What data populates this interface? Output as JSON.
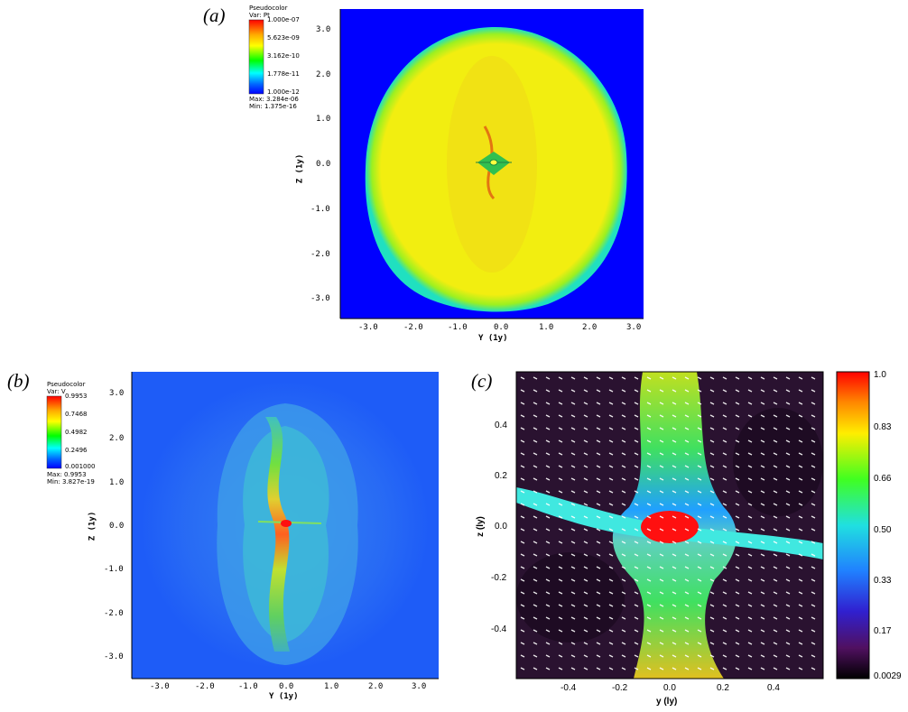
{
  "panels": {
    "a": {
      "label": "(a)",
      "legend_title": "Pseudocolor",
      "legend_var": "Var: Pt",
      "colorbar_labels": [
        "1.000e-07",
        "5.623e-09",
        "3.162e-10",
        "1.778e-11",
        "1.000e-12"
      ],
      "max_text": "Max: 3.284e-06",
      "min_text": "Min: 1.375e-16",
      "x_ticks": [
        "-3.0",
        "-2.0",
        "-1.0",
        "0.0",
        "1.0",
        "2.0",
        "3.0"
      ],
      "y_ticks": [
        "3.0",
        "2.0",
        "1.0",
        "0.0",
        "-1.0",
        "-2.0",
        "-3.0"
      ],
      "xlabel": "Y (1y)",
      "ylabel": "Z (1y)"
    },
    "b": {
      "label": "(b)",
      "legend_title": "Pseudocolor",
      "legend_var": "Var: V",
      "colorbar_labels": [
        "0.9953",
        "0.7468",
        "0.4982",
        "0.2496",
        "0.001000"
      ],
      "max_text": "Max: 0.9953",
      "min_text": "Min: 3.827e-19",
      "x_ticks": [
        "-3.0",
        "-2.0",
        "-1.0",
        "0.0",
        "1.0",
        "2.0",
        "3.0"
      ],
      "y_ticks": [
        "3.0",
        "2.0",
        "1.0",
        "0.0",
        "-1.0",
        "-2.0",
        "-3.0"
      ],
      "xlabel": "Y (1y)",
      "ylabel": "Z (1y)"
    },
    "c": {
      "label": "(c)",
      "x_ticks": [
        "-0.4",
        "-0.2",
        "0.0",
        "0.2",
        "0.4"
      ],
      "y_ticks": [
        "0.4",
        "0.2",
        "0.0",
        "-0.2",
        "-0.4"
      ],
      "xlabel": "y (ly)",
      "ylabel": "z (ly)",
      "colorbar_labels": [
        "1.0",
        "0.83",
        "0.66",
        "0.50",
        "0.33",
        "0.17",
        "0.0029"
      ]
    }
  },
  "colors": {
    "rainbow": [
      "#ff0000",
      "#ffaa00",
      "#ffff00",
      "#00ff00",
      "#00ffff",
      "#0055ff",
      "#0000ff"
    ],
    "panel_a_bg": "#0000ff",
    "panel_a_disc": "#f2f000",
    "panel_b_bg": "#1e5cf7",
    "panel_c_bg": "#2a1230"
  }
}
